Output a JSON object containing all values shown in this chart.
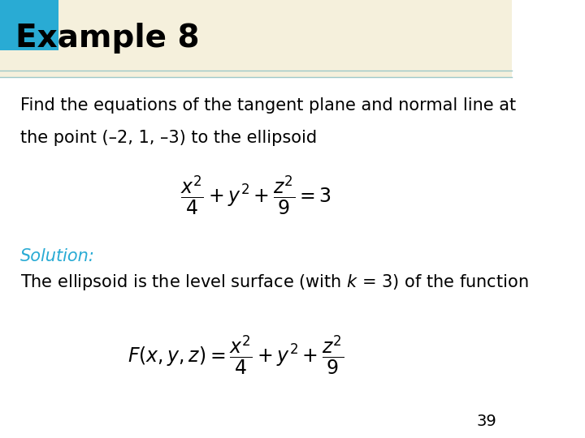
{
  "title": "Example 8",
  "title_bg_color": "#F5F0DC",
  "title_square_color": "#29ABD4",
  "title_fontsize": 28,
  "title_text_color": "#000000",
  "body_bg_color": "#FFFFFF",
  "line1": "Find the equations of the tangent plane and normal line at",
  "line2": "the point (–2, 1, –3) to the ellipsoid",
  "body_fontsize": 15,
  "solution_label": "Solution:",
  "solution_color": "#29ABD4",
  "solution_fontsize": 15,
  "body_line": "The ellipsoid is the level surface (with $k$ = 3) of the function",
  "equation1": "$\\dfrac{x^2}{4} + y^2 + \\dfrac{z^2}{9} = 3$",
  "equation2": "$F(x, y, z) = \\dfrac{x^2}{4} + y^2 + \\dfrac{z^2}{9}$",
  "page_number": "39",
  "page_number_color": "#000000",
  "page_number_fontsize": 14,
  "header_line_color": "#9DC8C8",
  "teal_line_color": "#7EBABA"
}
